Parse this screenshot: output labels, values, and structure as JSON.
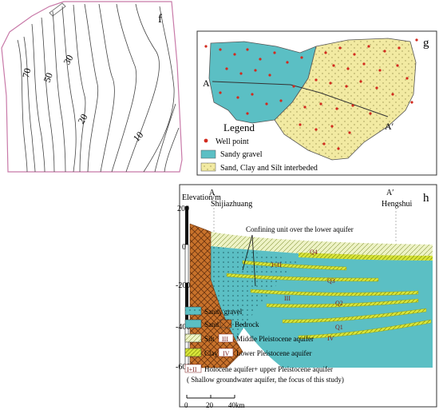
{
  "panel_f": {
    "label": "f",
    "contours": [
      "70",
      "50",
      "30",
      "20",
      "10"
    ]
  },
  "panel_g": {
    "label": "g",
    "point_a": "A",
    "point_a_prime": "A′",
    "legend_title": "Legend",
    "legend_items": [
      {
        "label": "Well point",
        "icon": "red-dot",
        "color": "#d22a1e"
      },
      {
        "label": "Sandy gravel",
        "icon": "teal-swatch",
        "color": "#5bbfc4"
      },
      {
        "label": "Sand, Clay and Silt interbeded",
        "icon": "yellow-dotted-swatch",
        "color": "#f2eaa2"
      }
    ]
  },
  "panel_h": {
    "label": "h",
    "elevation_title": "Elevation/m",
    "elevation_ticks": [
      "200",
      "0",
      "-200",
      "-400",
      "-600"
    ],
    "point_a": "A",
    "point_a_prime": "A′",
    "city_left": "Shijiazhuang",
    "city_right": "Hengshui",
    "callout": "Confining unit over the lower aquifer",
    "section_labels": [
      "Q4",
      "I+II",
      "Q3",
      "III",
      "Q2",
      "Q1",
      "IV"
    ],
    "legend": [
      {
        "label": "Sandy gravel",
        "icon": "teal-dotted-swatch"
      },
      {
        "label": "Sand",
        "icon": "teal-swatch"
      },
      {
        "label": "Bedrock",
        "icon": "bedrock-crosshatch-swatch"
      },
      {
        "label": "Silt",
        "icon": "silt-hatch-swatch"
      },
      {
        "label": "Middle Pleistocene aquifer",
        "code": "III"
      },
      {
        "label": "Clay",
        "icon": "clay-hatch-swatch"
      },
      {
        "label": "Lower Pleistocene aquifer",
        "code": "IV"
      },
      {
        "label": "Holocene aquifer+ upper Pleistocene aquifer",
        "code": "I+II"
      },
      {
        "label": "( Shallow groundwater aquifer, the focus of this study)"
      }
    ],
    "scale_ticks": [
      "0",
      "20",
      "40km"
    ]
  },
  "colors": {
    "teal": "#5bbfc4",
    "yellow": "#f2eaa2",
    "clay": "#d8e63a",
    "bedrock": "#c8722b",
    "well": "#d22a1e",
    "boundary_f": "#c879a8"
  }
}
